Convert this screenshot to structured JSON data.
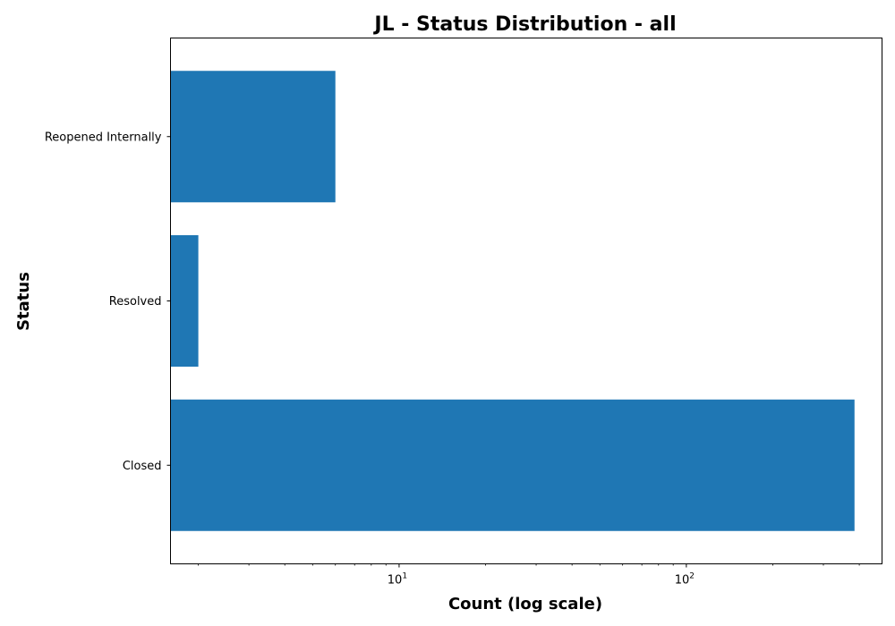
{
  "chart_data": {
    "type": "bar",
    "orientation": "horizontal",
    "title": "JL - Status Distribution - all",
    "xlabel": "Count (log scale)",
    "ylabel": "Status",
    "x_scale": "log",
    "xlim": [
      1.6,
      480
    ],
    "categories": [
      "Closed",
      "Resolved",
      "Reopened Internally"
    ],
    "values": [
      385,
      2,
      6
    ],
    "x_ticks": [
      {
        "value": 10,
        "base": "10",
        "exponent": "1"
      },
      {
        "value": 100,
        "base": "10",
        "exponent": "2"
      }
    ],
    "bar_color": "#1f77b4",
    "grid": false,
    "legend": "none"
  }
}
